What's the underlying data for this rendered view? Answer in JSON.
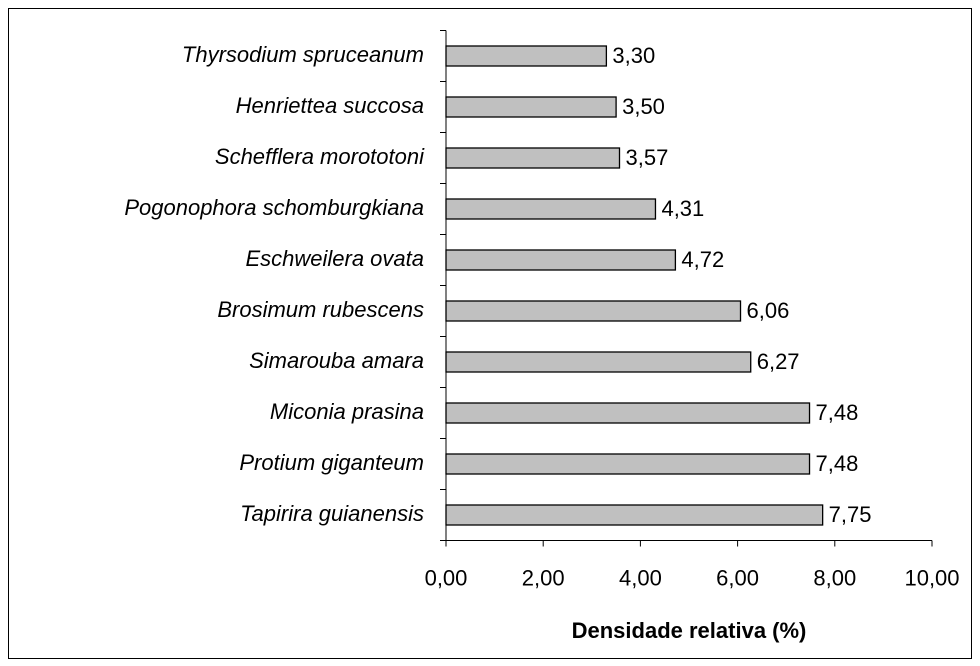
{
  "chart_data": {
    "type": "bar",
    "orientation": "horizontal",
    "x_label": "Densidade relativa (%)",
    "categories": [
      "Thyrsodium spruceanum",
      "Henriettea succosa",
      "Schefflera morototoni",
      "Pogonophora schomburgkiana",
      "Eschweilera ovata",
      "Brosimum rubescens",
      "Simarouba amara",
      "Miconia prasina",
      "Protium giganteum",
      "Tapirira guianensis"
    ],
    "values": [
      3.3,
      3.5,
      3.57,
      4.31,
      4.72,
      6.06,
      6.27,
      7.48,
      7.48,
      7.75
    ],
    "value_labels": [
      "3,30",
      "3,50",
      "3,57",
      "4,31",
      "4,72",
      "6,06",
      "6,27",
      "7,48",
      "7,48",
      "7,75"
    ],
    "color": "#c0c0c0",
    "xlim": [
      0,
      10
    ],
    "xticks": [
      {
        "value": 0,
        "label": "0,00"
      },
      {
        "value": 2,
        "label": "2,00"
      },
      {
        "value": 4,
        "label": "4,00"
      },
      {
        "value": 6,
        "label": "6,00"
      },
      {
        "value": 8,
        "label": "8,00"
      },
      {
        "value": 10,
        "label": "10,00"
      }
    ],
    "grid": false
  }
}
